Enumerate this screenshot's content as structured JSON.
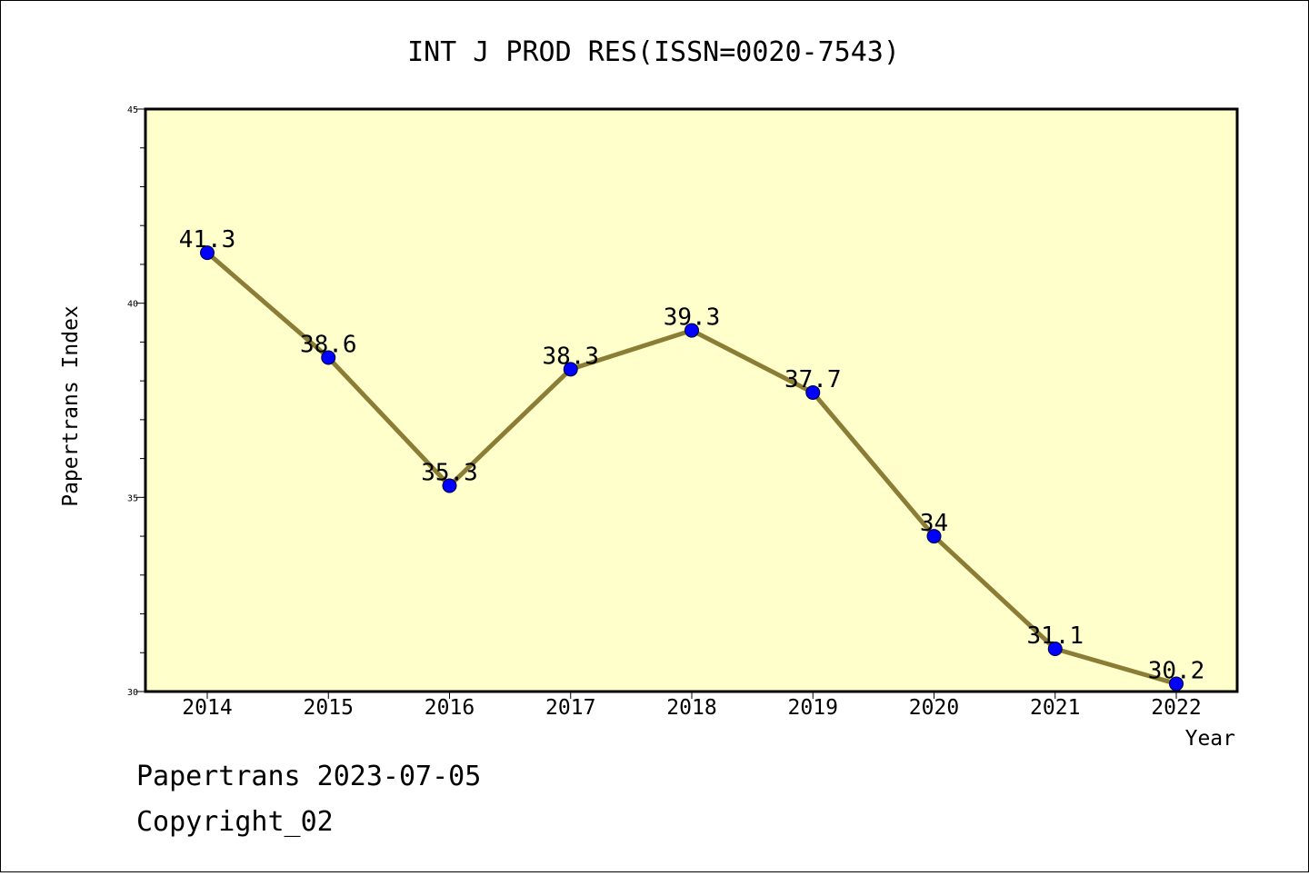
{
  "chart_data": {
    "type": "line",
    "title": "INT J PROD RES(ISSN=0020-7543)",
    "xlabel": "Year",
    "ylabel": "Papertrans Index",
    "categories": [
      "2014",
      "2015",
      "2016",
      "2017",
      "2018",
      "2019",
      "2020",
      "2021",
      "2022"
    ],
    "values": [
      41.3,
      38.6,
      35.3,
      38.3,
      39.3,
      37.7,
      34,
      31.1,
      30.2
    ],
    "data_labels": [
      "41.3",
      "38.6",
      "35.3",
      "38.3",
      "39.3",
      "37.7",
      "34",
      "31.1",
      "30.2"
    ],
    "ylim": [
      30,
      45
    ],
    "yticks": [
      "30",
      "35",
      "40",
      "45"
    ],
    "grid": false,
    "colors": {
      "plot_background": "#ffffcc",
      "line": "#8b7d35",
      "marker": "#0000ff"
    }
  },
  "footer": {
    "line1": "Papertrans 2023-07-05",
    "line2": "Copyright_02"
  }
}
